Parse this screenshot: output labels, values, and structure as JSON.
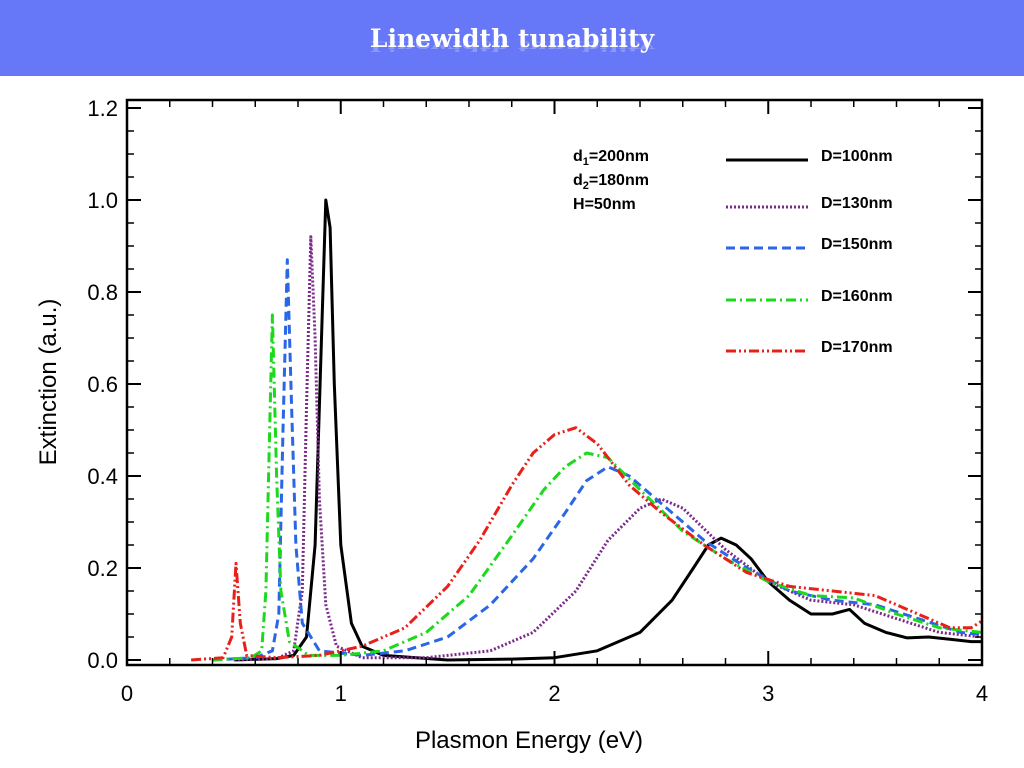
{
  "slide": {
    "title": "Linewidth tunability",
    "header_color": "#6677f7"
  },
  "chart_data": {
    "type": "line",
    "title": "",
    "xlabel": "Plasmon Energy (eV)",
    "ylabel": "Extinction (a.u.)",
    "xlim": [
      0,
      4
    ],
    "ylim": [
      0,
      1.2
    ],
    "x_ticks": [
      "0",
      "1",
      "2",
      "3",
      "4"
    ],
    "y_ticks": [
      "0.0",
      "0.2",
      "0.4",
      "0.6",
      "0.8",
      "1.0",
      "1.2"
    ],
    "grid": false,
    "legend_position": "top-right",
    "parameters": [
      {
        "name": "d",
        "sub": "1",
        "value": "=200nm"
      },
      {
        "name": "d",
        "sub": "2",
        "value": "=180nm"
      },
      {
        "name": "H",
        "sub": "",
        "value": "=50nm"
      }
    ],
    "series": [
      {
        "name": "D=100nm",
        "color": "#000000",
        "style": "solid",
        "points": [
          [
            0.5,
            0.0
          ],
          [
            0.7,
            0.003
          ],
          [
            0.78,
            0.01
          ],
          [
            0.84,
            0.05
          ],
          [
            0.88,
            0.25
          ],
          [
            0.91,
            0.7
          ],
          [
            0.93,
            1.0
          ],
          [
            0.95,
            0.94
          ],
          [
            0.97,
            0.6
          ],
          [
            1.0,
            0.25
          ],
          [
            1.05,
            0.08
          ],
          [
            1.1,
            0.03
          ],
          [
            1.2,
            0.01
          ],
          [
            1.5,
            0.0
          ],
          [
            1.8,
            0.002
          ],
          [
            2.0,
            0.005
          ],
          [
            2.2,
            0.02
          ],
          [
            2.4,
            0.06
          ],
          [
            2.55,
            0.13
          ],
          [
            2.65,
            0.2
          ],
          [
            2.72,
            0.25
          ],
          [
            2.78,
            0.265
          ],
          [
            2.85,
            0.25
          ],
          [
            2.92,
            0.22
          ],
          [
            3.0,
            0.17
          ],
          [
            3.1,
            0.13
          ],
          [
            3.2,
            0.1
          ],
          [
            3.3,
            0.1
          ],
          [
            3.38,
            0.11
          ],
          [
            3.45,
            0.08
          ],
          [
            3.55,
            0.06
          ],
          [
            3.65,
            0.048
          ],
          [
            3.75,
            0.05
          ],
          [
            3.85,
            0.045
          ],
          [
            3.95,
            0.04
          ],
          [
            4.0,
            0.04
          ]
        ]
      },
      {
        "name": "D=130nm",
        "color": "#7b2a8a",
        "style": "dotted",
        "points": [
          [
            0.5,
            0.0
          ],
          [
            0.7,
            0.003
          ],
          [
            0.78,
            0.02
          ],
          [
            0.82,
            0.15
          ],
          [
            0.84,
            0.55
          ],
          [
            0.86,
            0.92
          ],
          [
            0.88,
            0.7
          ],
          [
            0.9,
            0.35
          ],
          [
            0.93,
            0.12
          ],
          [
            0.98,
            0.03
          ],
          [
            1.1,
            0.005
          ],
          [
            1.4,
            0.005
          ],
          [
            1.7,
            0.02
          ],
          [
            1.9,
            0.06
          ],
          [
            2.1,
            0.15
          ],
          [
            2.25,
            0.26
          ],
          [
            2.4,
            0.33
          ],
          [
            2.5,
            0.35
          ],
          [
            2.6,
            0.33
          ],
          [
            2.8,
            0.24
          ],
          [
            3.0,
            0.17
          ],
          [
            3.2,
            0.13
          ],
          [
            3.4,
            0.12
          ],
          [
            3.6,
            0.09
          ],
          [
            3.8,
            0.06
          ],
          [
            4.0,
            0.05
          ]
        ]
      },
      {
        "name": "D=150nm",
        "color": "#2a66e6",
        "style": "dashed",
        "points": [
          [
            0.4,
            0.0
          ],
          [
            0.6,
            0.005
          ],
          [
            0.68,
            0.02
          ],
          [
            0.71,
            0.1
          ],
          [
            0.73,
            0.5
          ],
          [
            0.75,
            0.87
          ],
          [
            0.77,
            0.55
          ],
          [
            0.79,
            0.25
          ],
          [
            0.82,
            0.08
          ],
          [
            0.9,
            0.02
          ],
          [
            1.1,
            0.01
          ],
          [
            1.3,
            0.02
          ],
          [
            1.5,
            0.05
          ],
          [
            1.7,
            0.12
          ],
          [
            1.9,
            0.22
          ],
          [
            2.05,
            0.32
          ],
          [
            2.15,
            0.39
          ],
          [
            2.25,
            0.42
          ],
          [
            2.35,
            0.4
          ],
          [
            2.5,
            0.34
          ],
          [
            2.7,
            0.26
          ],
          [
            2.9,
            0.2
          ],
          [
            3.1,
            0.15
          ],
          [
            3.3,
            0.13
          ],
          [
            3.5,
            0.12
          ],
          [
            3.7,
            0.09
          ],
          [
            3.9,
            0.06
          ],
          [
            4.0,
            0.055
          ]
        ]
      },
      {
        "name": "D=160nm",
        "color": "#1cd91c",
        "style": "dashdot",
        "points": [
          [
            0.4,
            0.0
          ],
          [
            0.58,
            0.005
          ],
          [
            0.63,
            0.02
          ],
          [
            0.65,
            0.15
          ],
          [
            0.67,
            0.55
          ],
          [
            0.68,
            0.75
          ],
          [
            0.7,
            0.4
          ],
          [
            0.72,
            0.15
          ],
          [
            0.76,
            0.04
          ],
          [
            0.85,
            0.01
          ],
          [
            1.0,
            0.01
          ],
          [
            1.2,
            0.02
          ],
          [
            1.4,
            0.06
          ],
          [
            1.6,
            0.14
          ],
          [
            1.8,
            0.27
          ],
          [
            1.95,
            0.37
          ],
          [
            2.05,
            0.42
          ],
          [
            2.15,
            0.45
          ],
          [
            2.25,
            0.44
          ],
          [
            2.4,
            0.37
          ],
          [
            2.6,
            0.28
          ],
          [
            2.8,
            0.22
          ],
          [
            3.0,
            0.17
          ],
          [
            3.2,
            0.14
          ],
          [
            3.4,
            0.135
          ],
          [
            3.6,
            0.1
          ],
          [
            3.8,
            0.07
          ],
          [
            4.0,
            0.06
          ]
        ]
      },
      {
        "name": "D=170nm",
        "color": "#e8201a",
        "style": "dashdotdot",
        "points": [
          [
            0.3,
            0.0
          ],
          [
            0.45,
            0.005
          ],
          [
            0.49,
            0.05
          ],
          [
            0.51,
            0.21
          ],
          [
            0.53,
            0.08
          ],
          [
            0.56,
            0.01
          ],
          [
            0.7,
            0.005
          ],
          [
            0.9,
            0.01
          ],
          [
            1.1,
            0.03
          ],
          [
            1.3,
            0.07
          ],
          [
            1.5,
            0.16
          ],
          [
            1.65,
            0.26
          ],
          [
            1.8,
            0.38
          ],
          [
            1.9,
            0.45
          ],
          [
            2.0,
            0.49
          ],
          [
            2.1,
            0.505
          ],
          [
            2.2,
            0.47
          ],
          [
            2.35,
            0.38
          ],
          [
            2.5,
            0.32
          ],
          [
            2.7,
            0.25
          ],
          [
            2.9,
            0.19
          ],
          [
            3.1,
            0.16
          ],
          [
            3.3,
            0.15
          ],
          [
            3.5,
            0.14
          ],
          [
            3.7,
            0.1
          ],
          [
            3.85,
            0.07
          ],
          [
            3.95,
            0.07
          ],
          [
            4.0,
            0.085
          ]
        ]
      }
    ]
  }
}
